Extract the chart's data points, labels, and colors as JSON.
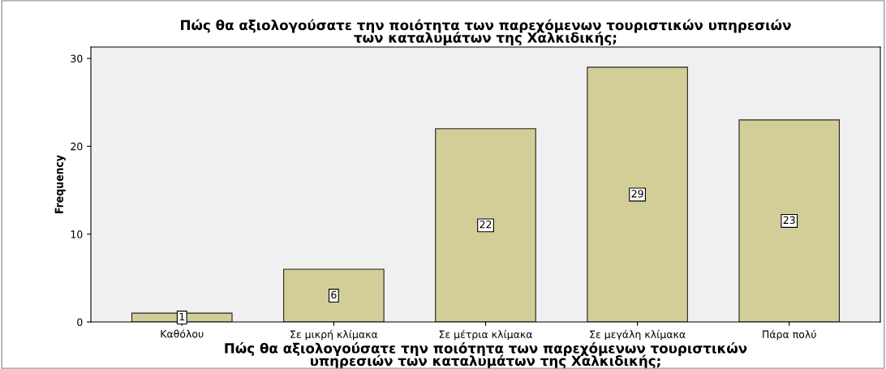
{
  "chart_data": {
    "type": "bar",
    "title": "Πώς θα αξιολογούσατε την ποιότητα των παρεχόμενων τουριστικών υπηρεσιών\nτων καταλυμάτων της Χαλκιδικής;",
    "xlabel": "Πώς θα αξιολογούσατε την ποιότητα των παρεχόμενων τουριστικών\nυπηρεσιών των καταλυμάτων της Χαλκιδικής;",
    "ylabel": "Frequency",
    "categories": [
      "Καθόλου",
      "Σε μικρή κλίμακα",
      "Σε μέτρια κλίμακα",
      "Σε μεγάλη κλίμακα",
      "Πάρα πολύ"
    ],
    "values": [
      1,
      6,
      22,
      29,
      23
    ],
    "color": "#d3ce97",
    "ylim": [
      0,
      31.3
    ],
    "yticks": [
      0,
      10,
      20,
      30
    ],
    "grid": false,
    "data_labels": true
  }
}
